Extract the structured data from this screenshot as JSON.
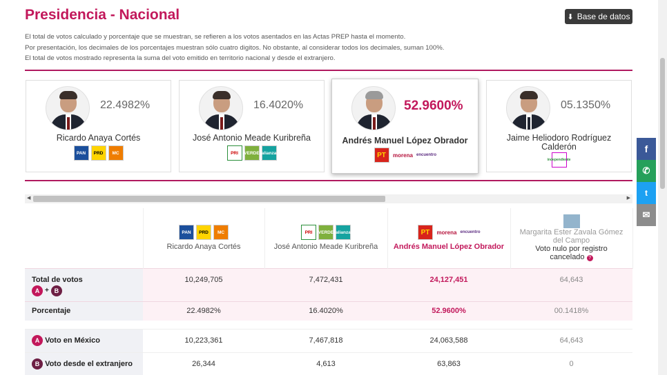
{
  "header": {
    "title": "Presidencia - Nacional",
    "db_button": "Base de datos",
    "notes": [
      "El total de votos calculado y porcentaje que se muestran, se refieren a los votos asentados en las Actas PREP hasta el momento.",
      "Por presentación, los decimales de los porcentajes muestran sólo cuatro digitos. No obstante, al considerar todos los decimales, suman 100%.",
      "El total de votos mostrado representa la suma del voto emitido en territorio nacional y desde el extranjero."
    ]
  },
  "colors": {
    "accent": "#c2185b",
    "rule": "#b0195f",
    "dark_button": "#3a3a3a"
  },
  "cards": [
    {
      "name": "Ricardo Anaya Cortés",
      "pct": "22.4982%",
      "logos": [
        "PAN",
        "PRD",
        "MC"
      ]
    },
    {
      "name": "José Antonio Meade Kuribreña",
      "pct": "16.4020%",
      "logos": [
        "PRI",
        "VERDE",
        "alianza"
      ]
    },
    {
      "name": "Andrés Manuel López Obrador",
      "pct": "52.9600%",
      "logos": [
        "PT",
        "morena",
        "encuentro"
      ]
    },
    {
      "name_line1": "Jaime Heliodoro Rodríguez",
      "name_line2": "Calderón",
      "pct": "05.1350%",
      "logos": [
        "independiente"
      ]
    }
  ],
  "table": {
    "headers": [
      {
        "name": "Ricardo Anaya Cortés"
      },
      {
        "name": "José Antonio Meade Kuribreña"
      },
      {
        "name": "Andrés Manuel López Obrador"
      },
      {
        "name_line1": "Margarita Ester Zavala Gómez",
        "name_line2": "del Campo",
        "note_line1": "Voto nulo por registro",
        "note_line2": "cancelado",
        "help": "?"
      }
    ],
    "rows": {
      "total": {
        "label": "Total de votos",
        "a": "A",
        "plus": "+",
        "b": "B",
        "values": [
          "10,249,705",
          "7,472,431",
          "24,127,451",
          "64,643"
        ]
      },
      "pct": {
        "label": "Porcentaje",
        "values": [
          "22.4982%",
          "16.4020%",
          "52.9600%",
          "00.1418%"
        ]
      },
      "mexico": {
        "badge": "A",
        "label": "Voto en México",
        "values": [
          "10,223,361",
          "7,467,818",
          "24,063,588",
          "64,643"
        ]
      },
      "extranjero": {
        "badge": "B",
        "label": "Voto desde el extranjero",
        "values": [
          "26,344",
          "4,613",
          "63,863",
          "0"
        ]
      }
    }
  },
  "social": {
    "facebook": "f",
    "whatsapp": "✆",
    "twitter": "t",
    "email": "✉"
  },
  "icons": [
    "download-icon",
    "facebook-icon",
    "whatsapp-icon",
    "twitter-icon",
    "email-icon",
    "help-icon"
  ]
}
